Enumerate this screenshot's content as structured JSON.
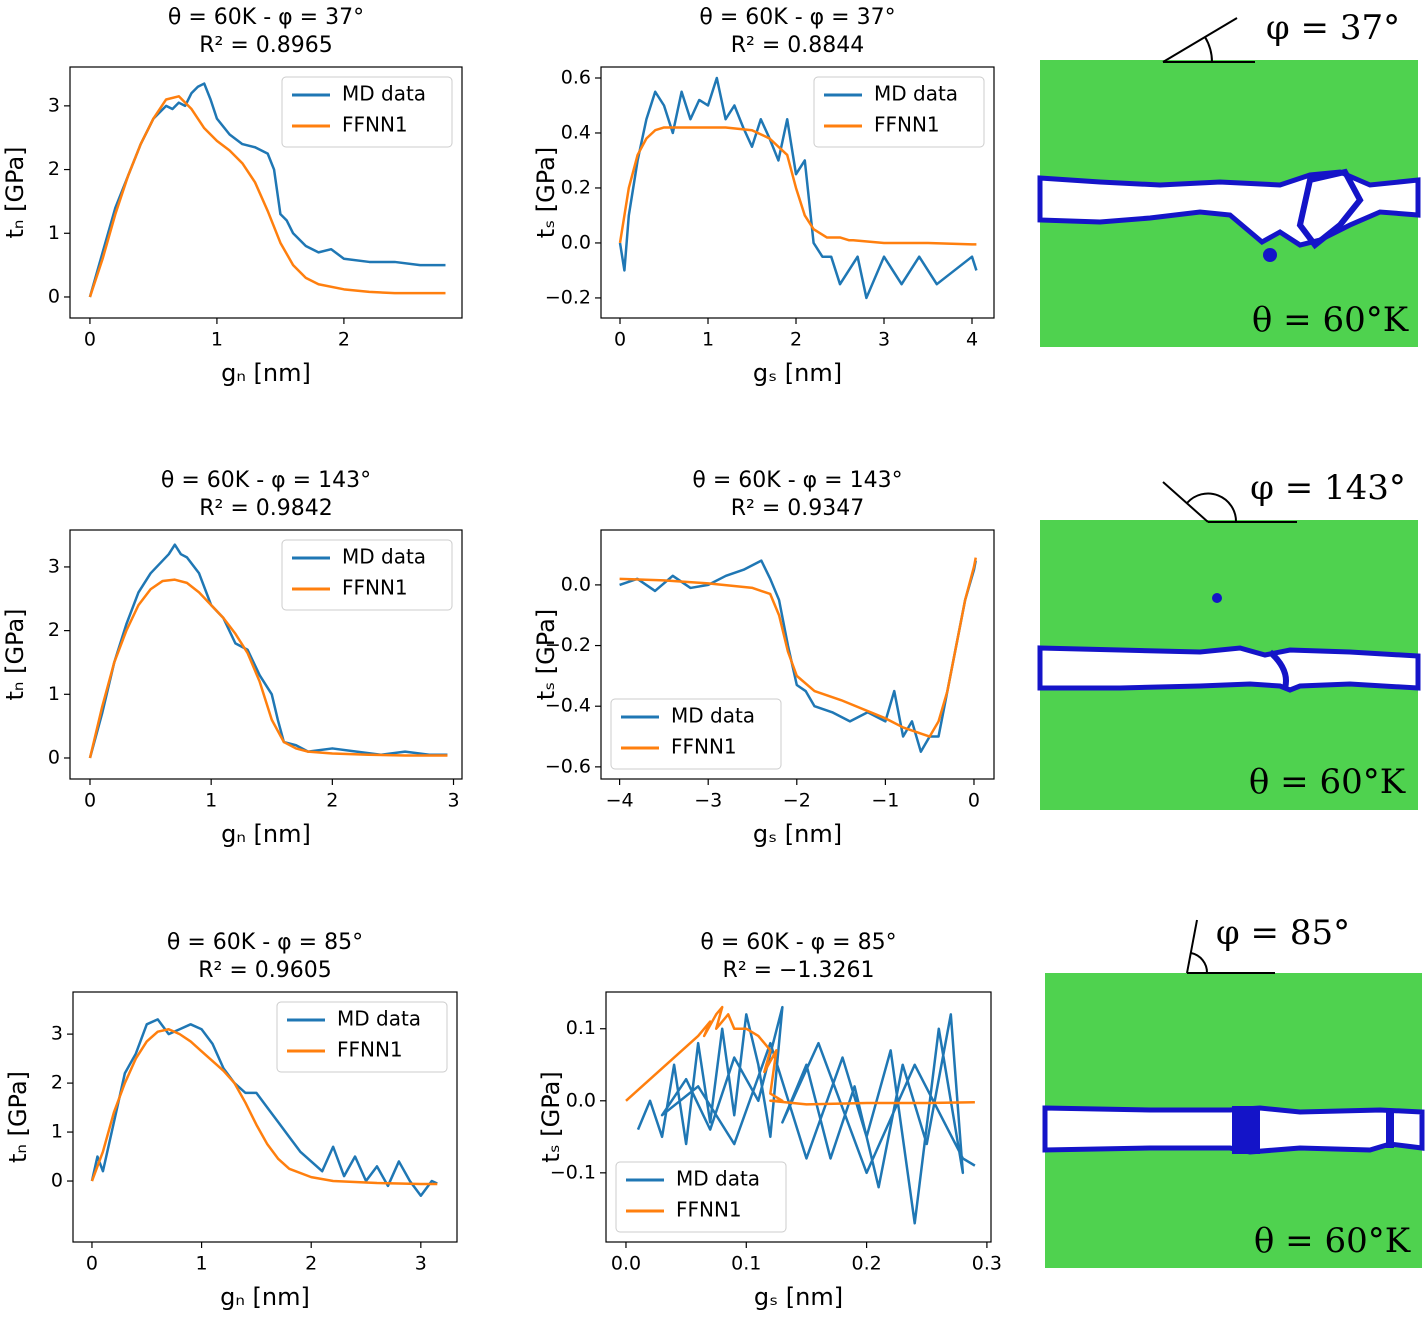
{
  "chart_data": [
    {
      "type": "line",
      "title": "θ = 60K - φ = 37°",
      "subtitle": "R² = 0.8965",
      "x_label": "gₙ [nm]",
      "y_label": "tₙ [GPa]",
      "xlim": [
        -0.157,
        2.93
      ],
      "ylim": [
        -0.33,
        3.61
      ],
      "xticks": [
        0,
        1,
        2
      ],
      "yticks": [
        0,
        1,
        2,
        3
      ],
      "legend": "upper right",
      "series": [
        {
          "name": "MD data",
          "color": "#1f77b4",
          "x": [
            0,
            0.1,
            0.2,
            0.3,
            0.4,
            0.5,
            0.55,
            0.6,
            0.65,
            0.7,
            0.75,
            0.8,
            0.85,
            0.9,
            0.95,
            1.0,
            1.1,
            1.2,
            1.3,
            1.4,
            1.45,
            1.5,
            1.55,
            1.6,
            1.7,
            1.8,
            1.9,
            2.0,
            2.2,
            2.4,
            2.6,
            2.8
          ],
          "values": [
            0,
            0.7,
            1.4,
            1.9,
            2.4,
            2.8,
            2.9,
            3.0,
            2.95,
            3.05,
            3.0,
            3.2,
            3.3,
            3.35,
            3.1,
            2.8,
            2.55,
            2.4,
            2.35,
            2.25,
            2.0,
            1.3,
            1.2,
            1.0,
            0.8,
            0.7,
            0.75,
            0.6,
            0.55,
            0.55,
            0.5,
            0.5
          ]
        },
        {
          "name": "FFNN1",
          "color": "#ff7f0e",
          "x": [
            0,
            0.1,
            0.2,
            0.3,
            0.4,
            0.5,
            0.6,
            0.7,
            0.8,
            0.9,
            1.0,
            1.1,
            1.2,
            1.3,
            1.4,
            1.5,
            1.6,
            1.7,
            1.8,
            2.0,
            2.2,
            2.4,
            2.6,
            2.8
          ],
          "values": [
            0,
            0.6,
            1.3,
            1.9,
            2.4,
            2.8,
            3.1,
            3.15,
            2.95,
            2.65,
            2.45,
            2.3,
            2.1,
            1.8,
            1.35,
            0.85,
            0.5,
            0.3,
            0.2,
            0.12,
            0.08,
            0.06,
            0.06,
            0.06
          ]
        }
      ]
    },
    {
      "type": "line",
      "title": "θ = 60K - φ = 37°",
      "subtitle": "R² = 0.8844",
      "x_label": "gₛ [nm]",
      "y_label": "tₛ [GPa]",
      "xlim": [
        -0.216,
        4.25
      ],
      "ylim": [
        -0.273,
        0.64
      ],
      "xticks": [
        0,
        1,
        2,
        3,
        4
      ],
      "yticks": [
        {
          "value": -0.2,
          "label": "−0.2"
        },
        {
          "value": 0,
          "label": "0.0"
        },
        0.2,
        0.4,
        0.6
      ],
      "legend": "upper right",
      "series": [
        {
          "name": "MD data",
          "color": "#1f77b4",
          "x": [
            0,
            0.05,
            0.1,
            0.2,
            0.3,
            0.4,
            0.5,
            0.6,
            0.7,
            0.8,
            0.9,
            1.0,
            1.1,
            1.2,
            1.3,
            1.4,
            1.5,
            1.6,
            1.7,
            1.8,
            1.9,
            2.0,
            2.1,
            2.2,
            2.3,
            2.4,
            2.5,
            2.6,
            2.7,
            2.8,
            3.0,
            3.2,
            3.4,
            3.6,
            3.8,
            4.0,
            4.05
          ],
          "values": [
            0,
            -0.1,
            0.1,
            0.3,
            0.45,
            0.55,
            0.5,
            0.4,
            0.55,
            0.45,
            0.52,
            0.5,
            0.6,
            0.45,
            0.5,
            0.42,
            0.35,
            0.45,
            0.38,
            0.3,
            0.45,
            0.25,
            0.3,
            0.0,
            -0.05,
            -0.05,
            -0.15,
            -0.1,
            -0.05,
            -0.2,
            -0.05,
            -0.15,
            -0.05,
            -0.15,
            -0.1,
            -0.05,
            -0.1
          ]
        },
        {
          "name": "FFNN1",
          "color": "#ff7f0e",
          "x": [
            0,
            0.1,
            0.2,
            0.3,
            0.4,
            0.5,
            0.8,
            1.2,
            1.5,
            1.7,
            1.9,
            2.0,
            2.1,
            2.2,
            2.3,
            2.35,
            2.5,
            2.6,
            2.65,
            3.0,
            3.5,
            4.0,
            4.05
          ],
          "values": [
            0,
            0.2,
            0.32,
            0.38,
            0.41,
            0.42,
            0.42,
            0.42,
            0.41,
            0.38,
            0.32,
            0.2,
            0.1,
            0.05,
            0.03,
            0.02,
            0.02,
            0.01,
            0.01,
            0.0,
            0.0,
            -0.005,
            -0.005
          ]
        }
      ]
    },
    {
      "type": "line",
      "title": "θ = 60K - φ = 143°",
      "subtitle": "R² = 0.9842",
      "x_label": "gₙ [nm]",
      "y_label": "tₙ [GPa]",
      "xlim": [
        -0.165,
        3.07
      ],
      "ylim": [
        -0.33,
        3.58
      ],
      "xticks": [
        0,
        1,
        2,
        3
      ],
      "yticks": [
        0,
        1,
        2,
        3
      ],
      "legend": "upper right",
      "series": [
        {
          "name": "MD data",
          "color": "#1f77b4",
          "x": [
            0,
            0.1,
            0.2,
            0.3,
            0.4,
            0.5,
            0.6,
            0.65,
            0.7,
            0.75,
            0.8,
            0.9,
            1.0,
            1.1,
            1.2,
            1.3,
            1.4,
            1.5,
            1.55,
            1.6,
            1.7,
            1.8,
            2.0,
            2.2,
            2.4,
            2.6,
            2.8,
            2.95
          ],
          "values": [
            0,
            0.7,
            1.5,
            2.1,
            2.6,
            2.9,
            3.1,
            3.2,
            3.35,
            3.2,
            3.15,
            2.9,
            2.4,
            2.2,
            1.8,
            1.7,
            1.3,
            1.0,
            0.6,
            0.25,
            0.2,
            0.1,
            0.15,
            0.1,
            0.05,
            0.1,
            0.05,
            0.05
          ]
        },
        {
          "name": "FFNN1",
          "color": "#ff7f0e",
          "x": [
            0,
            0.1,
            0.2,
            0.3,
            0.4,
            0.5,
            0.6,
            0.7,
            0.8,
            0.9,
            1.0,
            1.1,
            1.2,
            1.3,
            1.4,
            1.5,
            1.6,
            1.7,
            1.8,
            2.0,
            2.3,
            2.6,
            2.95
          ],
          "values": [
            0,
            0.8,
            1.5,
            2.0,
            2.4,
            2.65,
            2.78,
            2.8,
            2.75,
            2.6,
            2.4,
            2.2,
            1.95,
            1.65,
            1.2,
            0.6,
            0.25,
            0.15,
            0.1,
            0.07,
            0.05,
            0.04,
            0.04
          ]
        }
      ]
    },
    {
      "type": "line",
      "title": "θ = 60K - φ = 143°",
      "subtitle": "R² = 0.9347",
      "x_label": "gₛ [nm]",
      "y_label": "tₛ [GPa]",
      "xlim": [
        -4.21,
        0.226
      ],
      "ylim": [
        -0.64,
        0.181
      ],
      "xticks": [
        {
          "value": -4,
          "label": "−4"
        },
        {
          "value": -3,
          "label": "−3"
        },
        {
          "value": -2,
          "label": "−2"
        },
        {
          "value": -1,
          "label": "−1"
        },
        0
      ],
      "yticks": [
        {
          "value": -0.6,
          "label": "−0.6"
        },
        {
          "value": -0.4,
          "label": "−0.4"
        },
        {
          "value": -0.2,
          "label": "−0.2"
        },
        {
          "value": 0,
          "label": "0.0"
        }
      ],
      "legend": "lower left",
      "series": [
        {
          "name": "MD data",
          "color": "#1f77b4",
          "x": [
            -4,
            -3.8,
            -3.6,
            -3.4,
            -3.2,
            -3.0,
            -2.8,
            -2.6,
            -2.4,
            -2.3,
            -2.2,
            -2.1,
            -2.0,
            -1.9,
            -1.8,
            -1.6,
            -1.4,
            -1.2,
            -1.0,
            -0.9,
            -0.8,
            -0.7,
            -0.6,
            -0.5,
            -0.4,
            -0.3,
            -0.2,
            -0.1,
            0.0,
            0.02
          ],
          "values": [
            0.0,
            0.02,
            -0.02,
            0.03,
            -0.01,
            0.0,
            0.03,
            0.05,
            0.08,
            0.02,
            -0.05,
            -0.2,
            -0.33,
            -0.35,
            -0.4,
            -0.42,
            -0.45,
            -0.42,
            -0.45,
            -0.35,
            -0.5,
            -0.45,
            -0.55,
            -0.5,
            -0.5,
            -0.35,
            -0.2,
            -0.05,
            0.05,
            0.08
          ]
        },
        {
          "name": "FFNN1",
          "color": "#ff7f0e",
          "x": [
            -4,
            -3.5,
            -3.0,
            -2.5,
            -2.3,
            -2.2,
            -2.1,
            -2.0,
            -1.8,
            -1.5,
            -1.0,
            -0.8,
            -0.6,
            -0.5,
            -0.4,
            -0.3,
            -0.2,
            -0.1,
            0.0,
            0.02
          ],
          "values": [
            0.02,
            0.015,
            0.005,
            -0.01,
            -0.03,
            -0.1,
            -0.22,
            -0.3,
            -0.35,
            -0.38,
            -0.44,
            -0.47,
            -0.49,
            -0.5,
            -0.45,
            -0.35,
            -0.2,
            -0.05,
            0.06,
            0.09
          ]
        }
      ]
    },
    {
      "type": "line",
      "title": "θ = 60K - φ = 85°",
      "subtitle": "R² = 0.9605",
      "x_label": "gₙ [nm]",
      "y_label": "tₙ [GPa]",
      "xlim": [
        -0.173,
        3.33
      ],
      "ylim": [
        -1.245,
        3.86
      ],
      "xticks": [
        0,
        1,
        2,
        3
      ],
      "yticks": [
        0,
        1,
        2,
        3
      ],
      "legend": "upper right",
      "series": [
        {
          "name": "MD data",
          "color": "#1f77b4",
          "x": [
            0,
            0.05,
            0.1,
            0.2,
            0.3,
            0.4,
            0.5,
            0.6,
            0.7,
            0.8,
            0.9,
            1.0,
            1.1,
            1.2,
            1.3,
            1.4,
            1.5,
            1.6,
            1.7,
            1.8,
            1.9,
            2.0,
            2.1,
            2.2,
            2.3,
            2.4,
            2.5,
            2.6,
            2.7,
            2.8,
            2.9,
            3.0,
            3.1,
            3.15
          ],
          "values": [
            0,
            0.5,
            0.2,
            1.2,
            2.2,
            2.6,
            3.2,
            3.3,
            3.0,
            3.1,
            3.2,
            3.1,
            2.8,
            2.3,
            2.0,
            1.8,
            1.8,
            1.5,
            1.2,
            0.9,
            0.6,
            0.4,
            0.2,
            0.7,
            0.1,
            0.5,
            0.0,
            0.3,
            -0.1,
            0.4,
            0.0,
            -0.3,
            0.0,
            -0.05
          ]
        },
        {
          "name": "FFNN1",
          "color": "#ff7f0e",
          "x": [
            0,
            0.1,
            0.2,
            0.3,
            0.4,
            0.5,
            0.6,
            0.7,
            0.8,
            0.9,
            1.0,
            1.1,
            1.2,
            1.3,
            1.4,
            1.5,
            1.6,
            1.7,
            1.8,
            2.0,
            2.2,
            2.4,
            2.6,
            2.8,
            3.0,
            3.15
          ],
          "values": [
            0,
            0.6,
            1.4,
            2.0,
            2.5,
            2.85,
            3.05,
            3.1,
            3.0,
            2.85,
            2.65,
            2.45,
            2.25,
            2.0,
            1.6,
            1.15,
            0.75,
            0.45,
            0.25,
            0.08,
            0.0,
            -0.02,
            -0.04,
            -0.05,
            -0.06,
            -0.06
          ]
        }
      ]
    },
    {
      "type": "line",
      "title": "θ = 60K - φ = 85°",
      "subtitle": "R² = −1.3261",
      "x_label": "gₛ [nm]",
      "y_label": "tₛ [GPa]",
      "xlim": [
        -0.0166,
        0.3034
      ],
      "ylim": [
        -0.196,
        0.151
      ],
      "xticks": [
        {
          "value": 0,
          "label": "0.0"
        },
        0.1,
        0.2,
        0.3
      ],
      "yticks": [
        {
          "value": -0.1,
          "label": "−0.1"
        },
        {
          "value": 0,
          "label": "0.0"
        },
        0.1
      ],
      "legend": "lower left",
      "series": [
        {
          "name": "MD data",
          "color": "#1f77b4",
          "x": [
            0.01,
            0.02,
            0.03,
            0.04,
            0.05,
            0.06,
            0.07,
            0.08,
            0.09,
            0.1,
            0.11,
            0.12,
            0.13,
            0.11,
            0.09,
            0.07,
            0.05,
            0.03,
            0.06,
            0.09,
            0.12,
            0.15,
            0.18,
            0.2,
            0.22,
            0.24,
            0.26,
            0.28,
            0.27,
            0.25,
            0.23,
            0.21,
            0.19,
            0.17,
            0.15,
            0.13,
            0.16,
            0.2,
            0.24,
            0.28,
            0.29
          ],
          "values": [
            -0.04,
            0.0,
            -0.05,
            0.05,
            -0.06,
            0.08,
            -0.03,
            0.1,
            -0.02,
            0.12,
            0.05,
            -0.05,
            0.13,
            0.0,
            0.06,
            -0.04,
            0.03,
            -0.02,
            0.02,
            -0.06,
            0.08,
            -0.08,
            0.06,
            -0.05,
            0.07,
            -0.17,
            0.1,
            -0.1,
            0.12,
            -0.06,
            0.05,
            -0.12,
            0.02,
            -0.08,
            0.05,
            -0.03,
            0.08,
            -0.1,
            0.05,
            -0.08,
            -0.09
          ]
        },
        {
          "name": "FFNN1",
          "color": "#ff7f0e",
          "x": [
            0,
            0.02,
            0.04,
            0.06,
            0.07,
            0.065,
            0.075,
            0.08,
            0.075,
            0.085,
            0.09,
            0.1,
            0.11,
            0.12,
            0.115,
            0.125,
            0.12,
            0.13,
            0.12,
            0.15,
            0.2,
            0.25,
            0.29
          ],
          "values": [
            0,
            0.03,
            0.06,
            0.09,
            0.11,
            0.09,
            0.12,
            0.13,
            0.1,
            0.12,
            0.1,
            0.1,
            0.09,
            0.07,
            0.04,
            0.07,
            0.01,
            0.0,
            0.0,
            -0.005,
            -0.003,
            -0.003,
            -0.002
          ]
        }
      ]
    }
  ],
  "figures": [
    {
      "angle_label": "φ = 37°",
      "temperature_label": "θ = 60°K"
    },
    {
      "angle_label": "φ = 143°",
      "temperature_label": "θ = 60°K"
    },
    {
      "angle_label": "φ = 85°",
      "temperature_label": "θ = 60°K"
    }
  ]
}
